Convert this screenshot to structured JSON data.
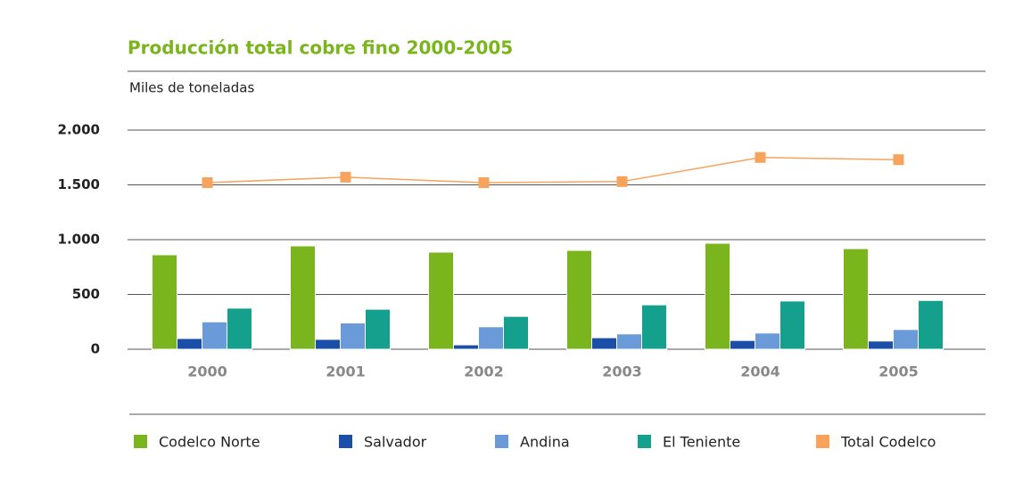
{
  "chart_data": {
    "type": "bar_line",
    "title": "Producción total cobre fino 2000-2005",
    "subtitle": "Miles de toneladas",
    "categories": [
      "2000",
      "2001",
      "2002",
      "2003",
      "2004",
      "2005"
    ],
    "series": [
      {
        "name": "Codelco Norte",
        "color": "#7ab51d",
        "type": "bar",
        "values": [
          862,
          943,
          886,
          902,
          967,
          918
        ]
      },
      {
        "name": "Salvador",
        "color": "#1a4ea8",
        "type": "bar",
        "values": [
          98,
          90,
          40,
          105,
          80,
          75
        ]
      },
      {
        "name": "Andina",
        "color": "#6a9ad8",
        "type": "bar",
        "values": [
          250,
          240,
          205,
          140,
          148,
          180
        ]
      },
      {
        "name": "El Teniente",
        "color": "#14a08c",
        "type": "bar",
        "values": [
          375,
          365,
          300,
          405,
          440,
          445
        ]
      },
      {
        "name": "Total Codelco",
        "color": "#f7a35c",
        "type": "line",
        "values": [
          1520,
          1570,
          1520,
          1530,
          1750,
          1730
        ]
      }
    ],
    "ylim": [
      0,
      2000
    ],
    "yticks": [
      0,
      500,
      {
        "value": 1000,
        "label": "1.000"
      },
      {
        "value": 1500,
        "label": "1.500"
      },
      {
        "value": 2000,
        "label": "2.000"
      }
    ],
    "grid": true,
    "legend": "bottom"
  }
}
